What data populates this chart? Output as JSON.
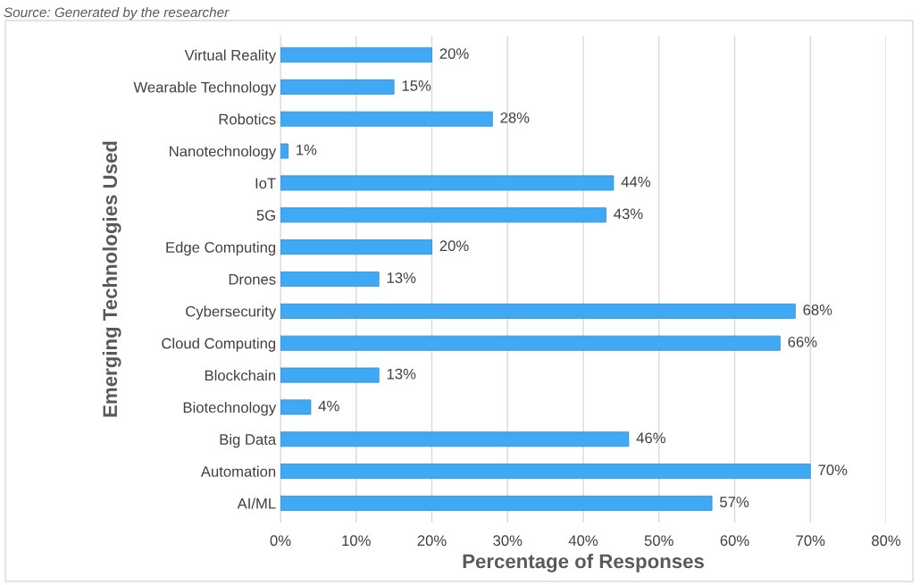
{
  "chart_data": {
    "type": "bar",
    "orientation": "horizontal",
    "xlabel": "Percentage of Responses",
    "ylabel": "Emerging Technologies Used",
    "annotations": [
      "Source: Generated by the researcher"
    ],
    "categories": [
      "Virtual Reality",
      "Wearable Technology",
      "Robotics",
      "Nanotechnology",
      "IoT",
      "5G",
      "Edge Computing",
      "Drones",
      "Cybersecurity",
      "Cloud Computing",
      "Blockchain",
      "Biotechnology",
      "Big Data",
      "Automation",
      "AI/ML"
    ],
    "values": [
      20,
      15,
      28,
      1,
      44,
      43,
      20,
      13,
      68,
      66,
      13,
      4,
      46,
      70,
      57
    ],
    "value_labels": [
      "20%",
      "15%",
      "28%",
      "1%",
      "44%",
      "43%",
      "20%",
      "13%",
      "68%",
      "66%",
      "13%",
      "4%",
      "46%",
      "70%",
      "57%"
    ],
    "color": "#3fa9f5",
    "xlim": [
      0,
      80
    ],
    "xticks": [
      {
        "value": 0,
        "label": "0%"
      },
      {
        "value": 10,
        "label": "10%"
      },
      {
        "value": 20,
        "label": "20%"
      },
      {
        "value": 30,
        "label": "30%"
      },
      {
        "value": 40,
        "label": "40%"
      },
      {
        "value": 50,
        "label": "50%"
      },
      {
        "value": 60,
        "label": "60%"
      },
      {
        "value": 70,
        "label": "70%"
      },
      {
        "value": 80,
        "label": "80%"
      }
    ],
    "grid": "x"
  }
}
